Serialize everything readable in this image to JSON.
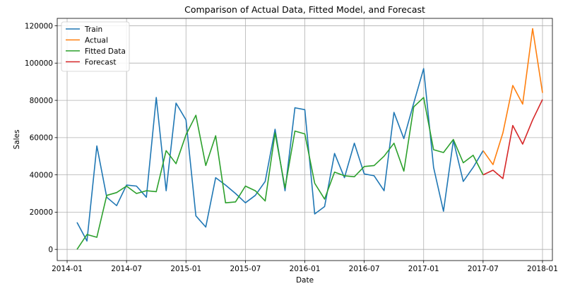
{
  "chart_data": {
    "type": "line",
    "title": "Comparison of Actual Data, Fitted Model, and Forecast",
    "xlabel": "Date",
    "ylabel": "Sales",
    "xlim": [
      "2013-12-01",
      "2018-02-01"
    ],
    "ylim": [
      -6000,
      124000
    ],
    "x_ticks": [
      "2014-01",
      "2014-07",
      "2015-01",
      "2015-07",
      "2016-01",
      "2016-07",
      "2017-01",
      "2017-07",
      "2018-01"
    ],
    "y_ticks": [
      0,
      20000,
      40000,
      60000,
      80000,
      100000,
      120000
    ],
    "grid": true,
    "legend_position": "top-left",
    "series": [
      {
        "name": "Train",
        "color": "#1f77b4",
        "x": [
          "2014-02",
          "2014-03",
          "2014-04",
          "2014-05",
          "2014-06",
          "2014-07",
          "2014-08",
          "2014-09",
          "2014-10",
          "2014-11",
          "2014-12",
          "2015-01",
          "2015-02",
          "2015-03",
          "2015-04",
          "2015-05",
          "2015-06",
          "2015-07",
          "2015-08",
          "2015-09",
          "2015-10",
          "2015-11",
          "2015-12",
          "2016-01",
          "2016-02",
          "2016-03",
          "2016-04",
          "2016-05",
          "2016-06",
          "2016-07",
          "2016-08",
          "2016-09",
          "2016-10",
          "2016-11",
          "2016-12",
          "2017-01",
          "2017-02",
          "2017-03",
          "2017-04",
          "2017-05",
          "2017-06",
          "2017-07"
        ],
        "values": [
          14500,
          4500,
          55500,
          28000,
          23500,
          34500,
          34000,
          28000,
          81500,
          31500,
          78500,
          69500,
          18000,
          12000,
          38500,
          34500,
          30000,
          25000,
          29000,
          36500,
          64500,
          31500,
          76000,
          75000,
          19000,
          23000,
          51500,
          38500,
          57000,
          40500,
          39500,
          31500,
          73500,
          59500,
          78500,
          97000,
          44000,
          20500,
          58500,
          36500,
          44000,
          53000
        ]
      },
      {
        "name": "Actual",
        "color": "#ff7f0e",
        "x": [
          "2017-07",
          "2017-08",
          "2017-09",
          "2017-10",
          "2017-11",
          "2017-12",
          "2018-01"
        ],
        "values": [
          53000,
          45500,
          62500,
          88000,
          78000,
          118500,
          84000
        ]
      },
      {
        "name": "Fitted Data",
        "color": "#2ca02c",
        "x": [
          "2014-02",
          "2014-03",
          "2014-04",
          "2014-05",
          "2014-06",
          "2014-07",
          "2014-08",
          "2014-09",
          "2014-10",
          "2014-11",
          "2014-12",
          "2015-01",
          "2015-02",
          "2015-03",
          "2015-04",
          "2015-05",
          "2015-06",
          "2015-07",
          "2015-08",
          "2015-09",
          "2015-10",
          "2015-11",
          "2015-12",
          "2016-01",
          "2016-02",
          "2016-03",
          "2016-04",
          "2016-05",
          "2016-06",
          "2016-07",
          "2016-08",
          "2016-09",
          "2016-10",
          "2016-11",
          "2016-12",
          "2017-01",
          "2017-02",
          "2017-03",
          "2017-04",
          "2017-05",
          "2017-06",
          "2017-07"
        ],
        "values": [
          0,
          8000,
          6500,
          29000,
          30500,
          34000,
          30000,
          31500,
          31000,
          53000,
          46000,
          61500,
          72000,
          45000,
          61000,
          25000,
          25500,
          34000,
          31500,
          26000,
          62500,
          33000,
          63500,
          62000,
          35500,
          27000,
          41500,
          39500,
          39000,
          44500,
          45000,
          50000,
          57000,
          42000,
          76500,
          81500,
          53500,
          52000,
          59000,
          46500,
          50500,
          40000
        ]
      },
      {
        "name": "Forecast",
        "color": "#d62728",
        "x": [
          "2017-07",
          "2017-08",
          "2017-09",
          "2017-10",
          "2017-11",
          "2017-12",
          "2018-01"
        ],
        "values": [
          40000,
          42500,
          38000,
          66500,
          56500,
          69500,
          80500
        ]
      }
    ]
  }
}
